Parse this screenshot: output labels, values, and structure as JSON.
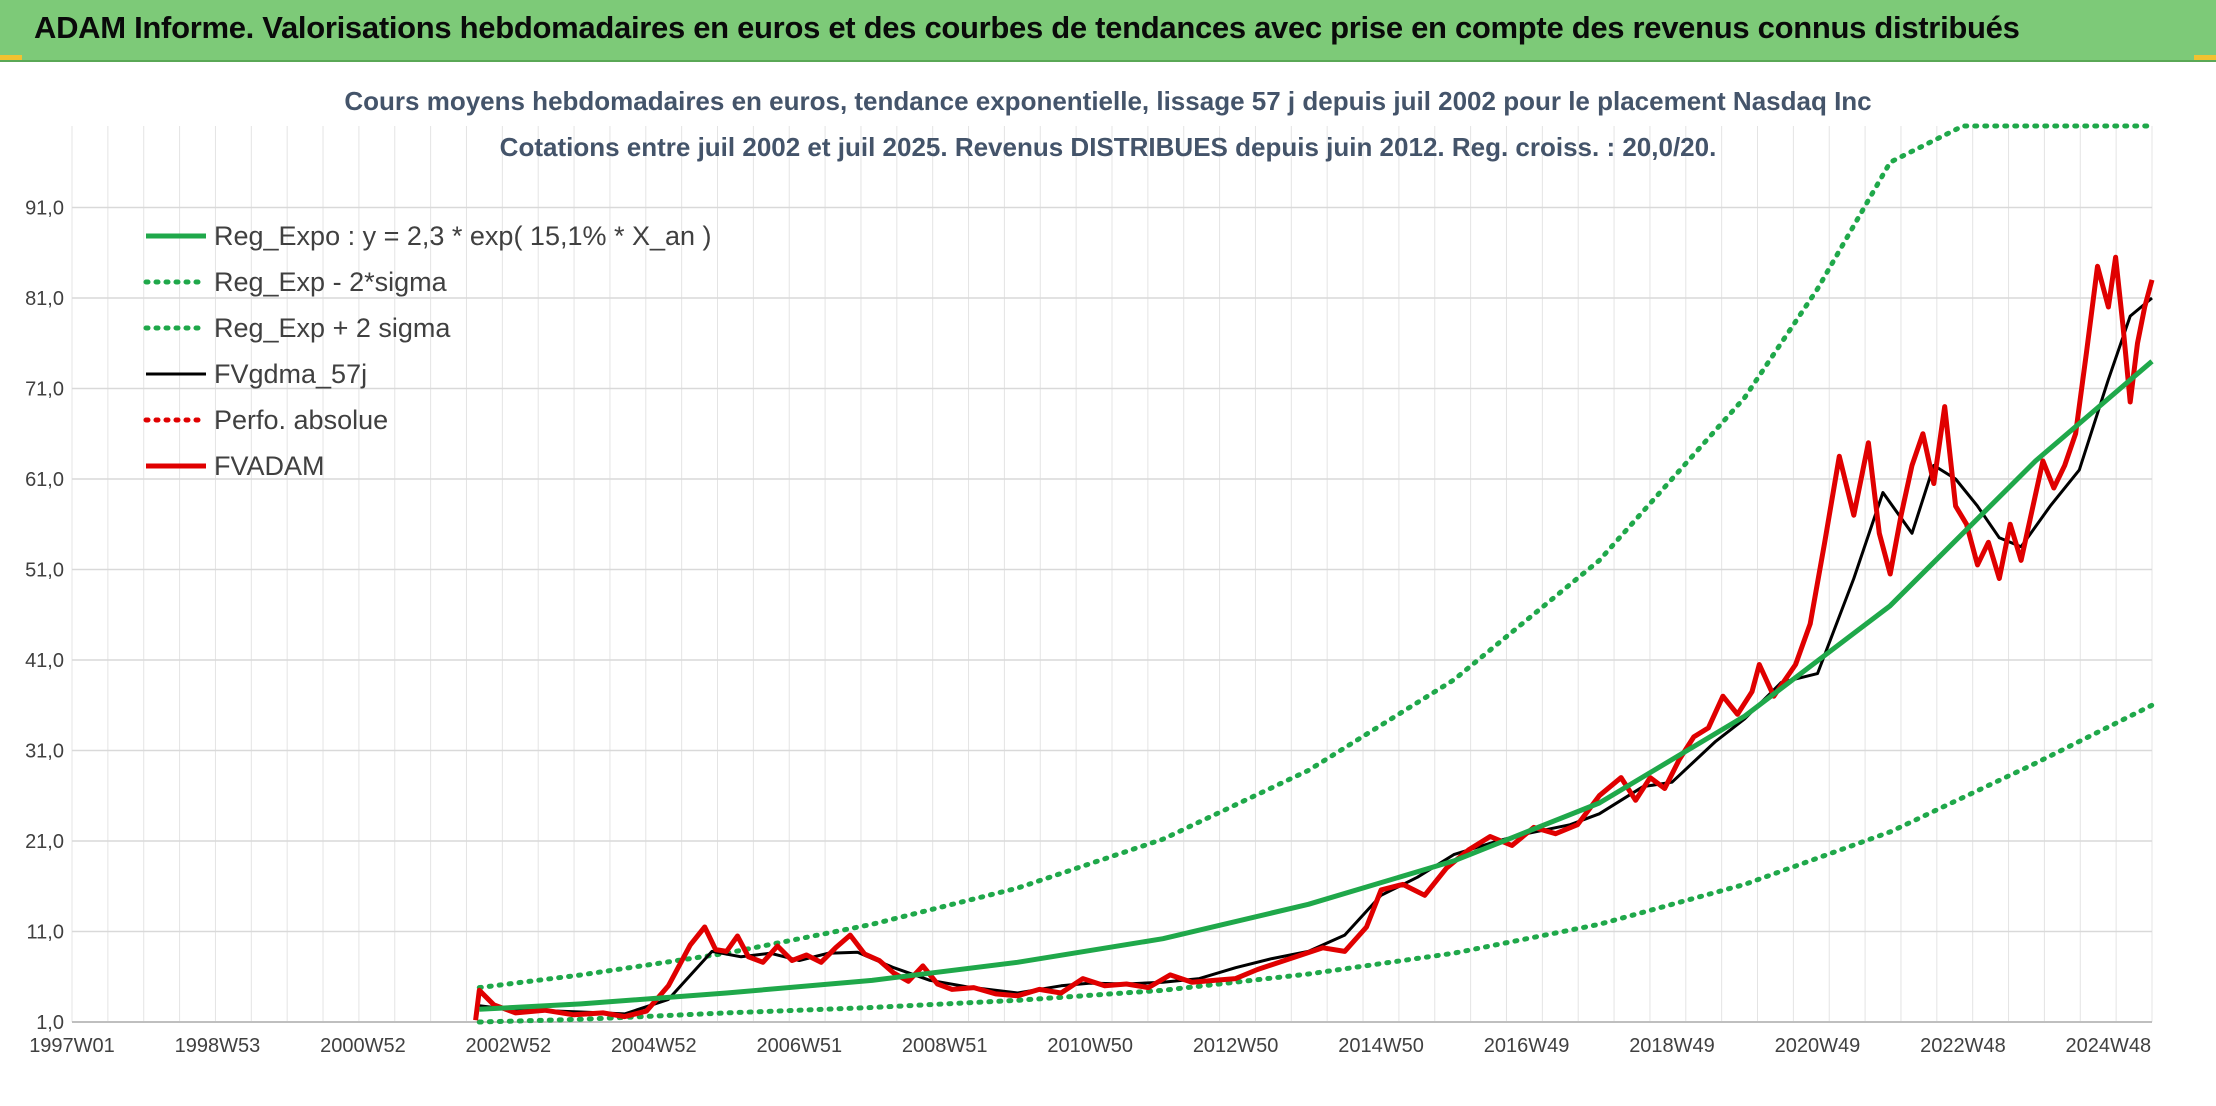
{
  "banner": {
    "title": "ADAM Informe. Valorisations hebdomadaires en euros et des courbes de tendances avec prise en compte des revenus connus distribués"
  },
  "chart_data": {
    "type": "line",
    "title": "Cours moyens hebdomadaires en euros, tendance exponentielle, lissage 57 j depuis juil 2002 pour le placement Nasdaq Inc",
    "subtitle": "Cotations entre juil 2002 et juil 2025. Revenus DISTRIBUES depuis juin 2012. Reg. croiss. : 20,0/20.",
    "xlabel": "",
    "ylabel": "",
    "x_range": [
      1997.0,
      2025.6
    ],
    "ylim": [
      1.0,
      100.0
    ],
    "y_ticks": [
      "1,0",
      "11,0",
      "21,0",
      "31,0",
      "41,0",
      "51,0",
      "61,0",
      "71,0",
      "81,0",
      "91,0"
    ],
    "y_tick_values": [
      1,
      11,
      21,
      31,
      41,
      51,
      61,
      71,
      81,
      91
    ],
    "x_ticks": [
      "1997W01",
      "1998W53",
      "2000W52",
      "2002W52",
      "2004W52",
      "2006W51",
      "2008W51",
      "2010W50",
      "2012W50",
      "2014W50",
      "2016W49",
      "2018W49",
      "2020W49",
      "2022W48",
      "2024W48"
    ],
    "x_tick_values": [
      1997.0,
      1999.0,
      2001.0,
      2003.0,
      2005.0,
      2007.0,
      2009.0,
      2011.0,
      2013.0,
      2015.0,
      2017.0,
      2019.0,
      2021.0,
      2023.0,
      2025.0
    ],
    "grid": true,
    "legend_position": "top-left",
    "series": [
      {
        "name": "Reg_Expo : y = 2,3 * exp( 15,1% *  X_an )",
        "color": "#1fa84a",
        "style": "solid-thick",
        "x": [
          2002.6,
          2004.0,
          2006.0,
          2008.0,
          2010.0,
          2012.0,
          2014.0,
          2016.0,
          2018.0,
          2020.0,
          2022.0,
          2024.0,
          2025.6
        ],
        "values": [
          2.4,
          3.0,
          4.2,
          5.6,
          7.6,
          10.2,
          14.0,
          18.8,
          25.2,
          34.8,
          47.0,
          63.0,
          74.0
        ]
      },
      {
        "name": "Reg_Exp - 2*sigma",
        "color": "#1fa84a",
        "style": "dotted",
        "x": [
          2002.6,
          2004.0,
          2006.0,
          2008.0,
          2010.0,
          2012.0,
          2014.0,
          2016.0,
          2018.0,
          2020.0,
          2022.0,
          2024.0,
          2025.6
        ],
        "values": [
          1.0,
          1.3,
          2.0,
          2.6,
          3.4,
          4.5,
          6.3,
          8.6,
          11.8,
          16.2,
          22.0,
          29.6,
          36.0
        ]
      },
      {
        "name": "Reg_Exp + 2 sigma",
        "color": "#1fa84a",
        "style": "dotted",
        "x": [
          2002.6,
          2004.0,
          2006.0,
          2008.0,
          2010.0,
          2012.0,
          2014.0,
          2016.0,
          2018.0,
          2020.0,
          2021.0,
          2022.0,
          2023.0,
          2024.0,
          2025.6
        ],
        "values": [
          4.8,
          6.2,
          8.6,
          11.8,
          15.8,
          21.2,
          28.8,
          38.8,
          52.0,
          70.0,
          82.0,
          96.0,
          100.0,
          100.0,
          100.0
        ]
      },
      {
        "name": "FVgdma_57j",
        "color": "#000000",
        "style": "solid",
        "x": [
          2002.6,
          2003.0,
          2004.0,
          2004.6,
          2005.2,
          2005.8,
          2006.2,
          2006.6,
          2007.0,
          2007.4,
          2007.8,
          2008.3,
          2008.8,
          2009.3,
          2010.0,
          2010.6,
          2011.0,
          2011.5,
          2012.0,
          2012.5,
          2013.0,
          2013.5,
          2014.0,
          2014.5,
          2015.0,
          2015.5,
          2016.0,
          2016.6,
          2017.0,
          2017.6,
          2018.0,
          2018.6,
          2019.0,
          2019.6,
          2020.0,
          2020.5,
          2021.0,
          2021.5,
          2021.9,
          2022.3,
          2022.6,
          2022.9,
          2023.2,
          2023.5,
          2023.8,
          2024.2,
          2024.6,
          2025.0,
          2025.3,
          2025.6
        ],
        "values": [
          2.8,
          2.4,
          2.1,
          1.9,
          3.5,
          8.8,
          8.2,
          8.6,
          7.8,
          8.6,
          8.7,
          7.0,
          5.6,
          4.9,
          4.2,
          5.0,
          5.3,
          5.2,
          5.4,
          5.8,
          7.0,
          8.0,
          8.8,
          10.6,
          15.0,
          17.0,
          19.5,
          21.0,
          21.8,
          22.8,
          24.0,
          27.0,
          27.5,
          32.0,
          34.5,
          38.5,
          39.5,
          50.0,
          59.5,
          55.0,
          62.5,
          61.0,
          58.0,
          54.5,
          53.5,
          58.0,
          62.0,
          72.0,
          79.0,
          81.0
        ]
      },
      {
        "name": "Perfo. absolue",
        "color": "#e00000",
        "style": "dotted",
        "x": [],
        "values": []
      },
      {
        "name": "FVADAM",
        "color": "#e00000",
        "style": "solid-thick",
        "x": [
          2002.55,
          2002.6,
          2002.8,
          2003.1,
          2003.5,
          2003.9,
          2004.3,
          2004.6,
          2004.9,
          2005.2,
          2005.5,
          2005.7,
          2005.85,
          2006.0,
          2006.15,
          2006.3,
          2006.5,
          2006.7,
          2006.9,
          2007.1,
          2007.3,
          2007.5,
          2007.7,
          2007.9,
          2008.1,
          2008.3,
          2008.5,
          2008.7,
          2008.9,
          2009.1,
          2009.4,
          2009.7,
          2010.0,
          2010.3,
          2010.6,
          2010.9,
          2011.2,
          2011.5,
          2011.8,
          2012.1,
          2012.4,
          2012.7,
          2013.0,
          2013.3,
          2013.6,
          2013.9,
          2014.2,
          2014.5,
          2014.8,
          2015.0,
          2015.3,
          2015.6,
          2015.9,
          2016.2,
          2016.5,
          2016.8,
          2017.1,
          2017.4,
          2017.7,
          2018.0,
          2018.3,
          2018.5,
          2018.7,
          2018.9,
          2019.1,
          2019.3,
          2019.5,
          2019.7,
          2019.9,
          2020.1,
          2020.2,
          2020.4,
          2020.7,
          2020.9,
          2021.1,
          2021.3,
          2021.5,
          2021.7,
          2021.85,
          2022.0,
          2022.15,
          2022.3,
          2022.45,
          2022.6,
          2022.75,
          2022.9,
          2023.05,
          2023.2,
          2023.35,
          2023.5,
          2023.65,
          2023.8,
          2023.95,
          2024.1,
          2024.25,
          2024.4,
          2024.55,
          2024.7,
          2024.85,
          2025.0,
          2025.1,
          2025.2,
          2025.3,
          2025.4,
          2025.5,
          2025.6
        ],
        "values": [
          1.2,
          4.5,
          2.9,
          2.0,
          2.3,
          1.8,
          2.0,
          1.6,
          2.2,
          5.0,
          9.5,
          11.5,
          9.0,
          8.8,
          10.5,
          8.2,
          7.6,
          9.4,
          7.8,
          8.4,
          7.6,
          9.2,
          10.6,
          8.5,
          7.8,
          6.4,
          5.5,
          7.2,
          5.2,
          4.6,
          4.8,
          4.1,
          3.9,
          4.6,
          4.2,
          5.8,
          5.0,
          5.2,
          4.8,
          6.2,
          5.4,
          5.6,
          5.8,
          6.8,
          7.6,
          8.4,
          9.2,
          8.8,
          11.5,
          15.6,
          16.2,
          15.0,
          18.0,
          20.0,
          21.5,
          20.5,
          22.5,
          21.8,
          22.8,
          26.0,
          28.0,
          25.5,
          28.0,
          26.8,
          30.0,
          32.5,
          33.5,
          37.0,
          35.0,
          37.5,
          40.5,
          37.0,
          40.5,
          45.0,
          54.0,
          63.5,
          57.0,
          65.0,
          55.0,
          50.5,
          57.0,
          62.5,
          66.0,
          60.5,
          69.0,
          58.0,
          56.0,
          51.5,
          54.0,
          50.0,
          56.0,
          52.0,
          57.5,
          63.0,
          60.0,
          62.5,
          66.0,
          75.0,
          84.5,
          80.0,
          85.5,
          78.0,
          69.5,
          76.0,
          80.0,
          83.0
        ]
      }
    ]
  }
}
